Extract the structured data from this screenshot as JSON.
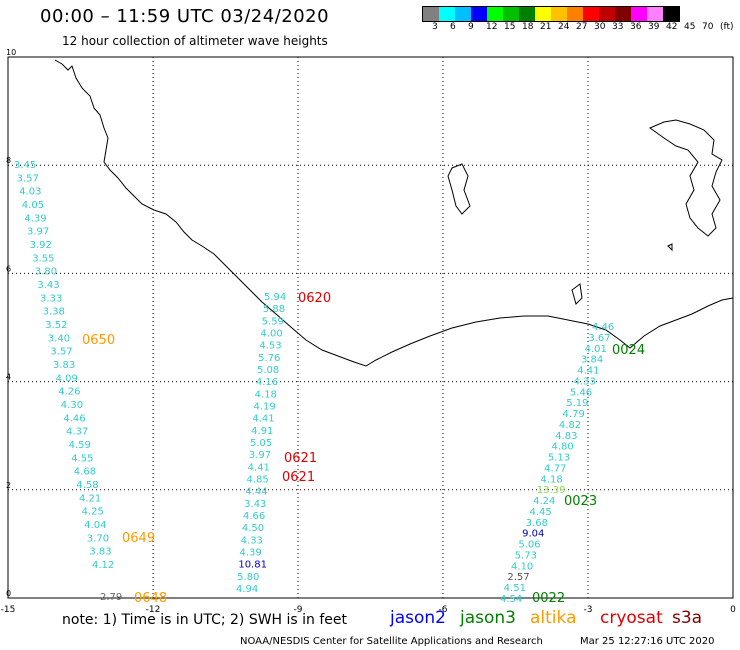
{
  "header": {
    "title": "00:00 – 11:59 UTC 03/24/2020",
    "subtitle": "12 hour collection of altimeter wave heights"
  },
  "colorbar": {
    "colors": [
      "#808080",
      "#00ffff",
      "#00bfff",
      "#0000ff",
      "#00ff00",
      "#00c000",
      "#008000",
      "#ffff00",
      "#ffc000",
      "#ff8000",
      "#ff0000",
      "#c00000",
      "#800000",
      "#ff00ff",
      "#ff80ff",
      "#000000"
    ],
    "labels": [
      "3",
      "6",
      "9",
      "12",
      "15",
      "18",
      "21",
      "24",
      "27",
      "30",
      "33",
      "36",
      "39",
      "42",
      "45",
      "70",
      "(ft)"
    ]
  },
  "axes": {
    "x_ticks": [
      "-15",
      "-12",
      "-9",
      "-6",
      "-3",
      "0"
    ],
    "y_ticks": [
      "0",
      "2",
      "4",
      "6",
      "8",
      "10"
    ]
  },
  "passes": [
    {
      "time": "0650",
      "color": "#ff9900",
      "values": [
        "3.45",
        "3.57",
        "4.03",
        "4.05",
        "4.39",
        "3.97",
        "3.92",
        "3.55",
        "3.80",
        "3.43",
        "3.33",
        "3.38",
        "3.52",
        "3.40",
        "3.57",
        "3.83",
        "4.09",
        "4.26",
        "4.30",
        "4.46",
        "4.37",
        "4.59",
        "4.55",
        "4.68",
        "4.58",
        "4.21",
        "4.25",
        "4.04",
        "3.70",
        "3.83",
        "4.12"
      ]
    },
    {
      "time": "0649",
      "color": "#ff9900"
    },
    {
      "time": "0648",
      "color": "#ff9900",
      "values": [
        "2.79"
      ]
    },
    {
      "time": "0620",
      "color": "#e00000",
      "values": [
        "5.94",
        "5.88",
        "5.59",
        "4.00",
        "4.53",
        "5.76",
        "5.08",
        "4.16",
        "4.18",
        "4.19",
        "4.41",
        "4.91",
        "5.05",
        "3.97",
        "4.41",
        "4.85",
        "4.44",
        "3.43",
        "4.66",
        "4.50",
        "4.33",
        "4.39",
        "10.81",
        "5.80",
        "4.94"
      ]
    },
    {
      "time": "0621",
      "color": "#e00000"
    },
    {
      "time": "0621",
      "color": "#e00000"
    },
    {
      "time": "0024",
      "color": "#008000",
      "values": [
        "4.46",
        "3.67",
        "4.01",
        "3.84",
        "4.41",
        "4.33",
        "5.46",
        "5.19",
        "4.79",
        "4.82",
        "4.83",
        "4.80",
        "5.13",
        "4.77",
        "4.18",
        "13.39",
        "4.24",
        "4.45",
        "3.68",
        "9.04",
        "5.06",
        "5.73",
        "4.10",
        "2.57",
        "4.51",
        "4.54"
      ]
    },
    {
      "time": "0023",
      "color": "#008000"
    },
    {
      "time": "0022",
      "color": "#008000"
    }
  ],
  "footer": {
    "note": "note: 1) Time is in UTC; 2) SWH is in feet",
    "legend": [
      {
        "label": "jason2",
        "color": "#0000ff"
      },
      {
        "label": "jason3",
        "color": "#008000"
      },
      {
        "label": "altika",
        "color": "#ff9900"
      },
      {
        "label": "cryosat",
        "color": "#e00000"
      },
      {
        "label": "s3a",
        "color": "#800000"
      }
    ],
    "credit": "NOAA/NESDIS Center for Satellite Applications and Research",
    "date": "Mar 25 12:27:16 UTC 2020"
  }
}
